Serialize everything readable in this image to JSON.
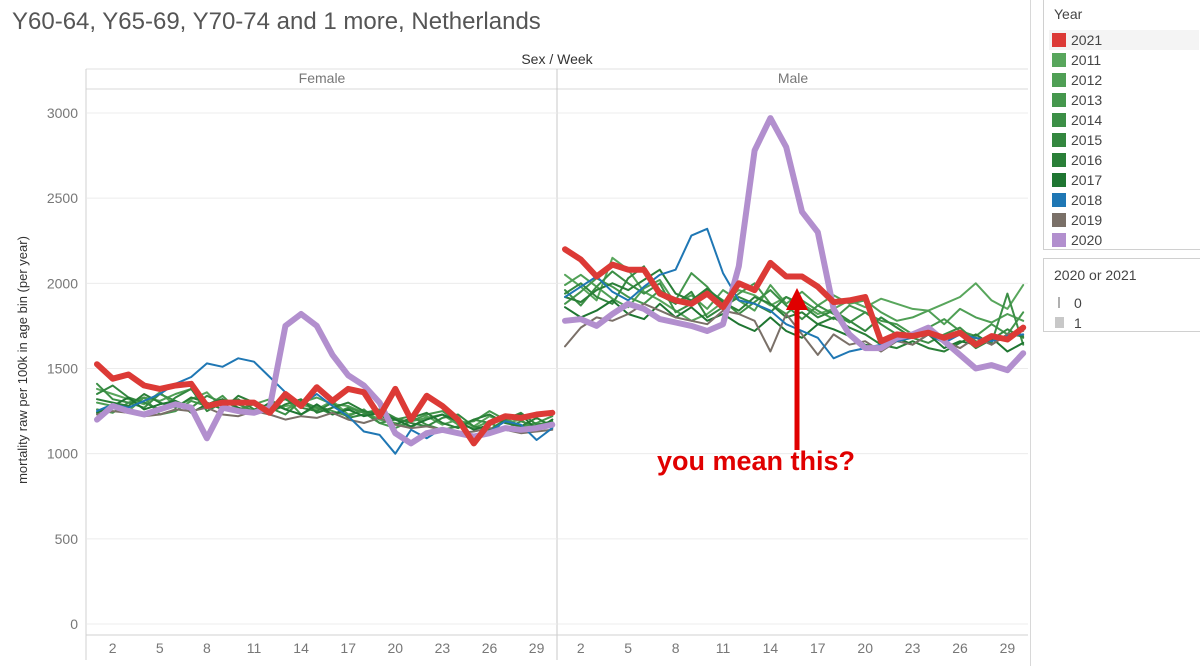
{
  "title": "Y60-64, Y65-69, Y70-74 and 1 more, Netherlands",
  "header_label": "Sex / Week",
  "annotation": "you mean this?",
  "legend": {
    "title": "Year",
    "items": [
      {
        "label": "2021",
        "color": "#dc3a36"
      },
      {
        "label": "2011",
        "color": "#58a65c"
      },
      {
        "label": "2012",
        "color": "#4f9f55"
      },
      {
        "label": "2013",
        "color": "#45974d"
      },
      {
        "label": "2014",
        "color": "#3c8f46"
      },
      {
        "label": "2015",
        "color": "#33873f"
      },
      {
        "label": "2016",
        "color": "#2a7f38"
      },
      {
        "label": "2017",
        "color": "#1f7632"
      },
      {
        "label": "2018",
        "color": "#1f77b4"
      },
      {
        "label": "2019",
        "color": "#7a7068"
      },
      {
        "label": "2020",
        "color": "#b28fce"
      }
    ]
  },
  "legend2": {
    "title": "2020 or 2021",
    "items": [
      {
        "label": "0"
      },
      {
        "label": "1"
      }
    ]
  },
  "chart_data": {
    "type": "line",
    "xlabel": "",
    "ylabel": "mortality raw per 100k in age bin (per year)",
    "ylim": [
      0,
      3000
    ],
    "yticks": [
      0,
      500,
      1000,
      1500,
      2000,
      2500,
      3000
    ],
    "xticks": [
      2,
      5,
      8,
      11,
      14,
      17,
      20,
      23,
      26,
      29
    ],
    "x": [
      1,
      2,
      3,
      4,
      5,
      6,
      7,
      8,
      9,
      10,
      11,
      12,
      13,
      14,
      15,
      16,
      17,
      18,
      19,
      20,
      21,
      22,
      23,
      24,
      25,
      26,
      27,
      28,
      29,
      30
    ],
    "panels": [
      {
        "name": "Female",
        "series": [
          {
            "name": "2021",
            "values": [
              1525,
              1440,
              1465,
              1400,
              1380,
              1400,
              1410,
              1280,
              1300,
              1300,
              1300,
              1240,
              1350,
              1280,
              1390,
              1310,
              1380,
              1360,
              1220,
              1380,
              1200,
              1340,
              1280,
              1200,
              1060,
              1180,
              1220,
              1210,
              1230,
              1240
            ]
          },
          {
            "name": "2011",
            "values": [
              1380,
              1350,
              1320,
              1290,
              1360,
              1280,
              1320,
              1360,
              1270,
              1240,
              1300,
              1250,
              1280,
              1290,
              1260,
              1310,
              1230,
              1250,
              1200,
              1180,
              1150,
              1220,
              1170,
              1200,
              1160,
              1220,
              1180,
              1200,
              1130,
              1200
            ]
          },
          {
            "name": "2012",
            "values": [
              1300,
              1280,
              1250,
              1330,
              1310,
              1350,
              1380,
              1290,
              1320,
              1260,
              1290,
              1320,
              1260,
              1300,
              1330,
              1290,
              1280,
              1240,
              1260,
              1200,
              1190,
              1210,
              1230,
              1170,
              1150,
              1190,
              1210,
              1160,
              1180,
              1150
            ]
          },
          {
            "name": "2013",
            "values": [
              1260,
              1240,
              1300,
              1330,
              1230,
              1250,
              1310,
              1280,
              1340,
              1250,
              1300,
              1270,
              1330,
              1230,
              1280,
              1250,
              1220,
              1260,
              1180,
              1150,
              1190,
              1230,
              1250,
              1180,
              1190,
              1250,
              1200,
              1150,
              1180,
              1220
            ]
          },
          {
            "name": "2014",
            "values": [
              1410,
              1320,
              1300,
              1270,
              1350,
              1310,
              1270,
              1340,
              1300,
              1290,
              1250,
              1270,
              1230,
              1310,
              1270,
              1230,
              1270,
              1240,
              1180,
              1200,
              1220,
              1170,
              1140,
              1160,
              1200,
              1180,
              1140,
              1190,
              1160,
              1180
            ]
          },
          {
            "name": "2015",
            "values": [
              1350,
              1400,
              1330,
              1300,
              1260,
              1330,
              1380,
              1250,
              1300,
              1320,
              1260,
              1290,
              1320,
              1270,
              1250,
              1300,
              1210,
              1230,
              1260,
              1210,
              1180,
              1160,
              1210,
              1230,
              1160,
              1140,
              1200,
              1240,
              1170,
              1190
            ]
          },
          {
            "name": "2016",
            "values": [
              1320,
              1300,
              1280,
              1350,
              1300,
              1270,
              1330,
              1300,
              1260,
              1340,
              1300,
              1240,
              1290,
              1320,
              1240,
              1270,
              1300,
              1250,
              1230,
              1170,
              1210,
              1240,
              1180,
              1150,
              1200,
              1230,
              1180,
              1160,
              1210,
              1160
            ]
          },
          {
            "name": "2017",
            "values": [
              1240,
              1280,
              1330,
              1260,
              1290,
              1310,
              1240,
              1290,
              1320,
              1270,
              1240,
              1300,
              1260,
              1230,
              1290,
              1230,
              1260,
              1220,
              1240,
              1200,
              1160,
              1200,
              1230,
              1190,
              1140,
              1170,
              1210,
              1230,
              1140,
              1200
            ]
          },
          {
            "name": "2018",
            "values": [
              1250,
              1290,
              1270,
              1310,
              1350,
              1410,
              1450,
              1530,
              1510,
              1560,
              1540,
              1450,
              1360,
              1290,
              1350,
              1280,
              1220,
              1130,
              1110,
              1000,
              1140,
              1090,
              1150,
              1120,
              1100,
              1130,
              1190,
              1170,
              1080,
              1150
            ]
          },
          {
            "name": "2019",
            "values": [
              1230,
              1250,
              1240,
              1220,
              1230,
              1260,
              1250,
              1270,
              1230,
              1220,
              1250,
              1230,
              1200,
              1220,
              1210,
              1240,
              1200,
              1180,
              1210,
              1170,
              1150,
              1160,
              1140,
              1120,
              1130,
              1150,
              1140,
              1120,
              1130,
              1140
            ]
          },
          {
            "name": "2020",
            "values": [
              1200,
              1280,
              1250,
              1230,
              1260,
              1290,
              1270,
              1090,
              1270,
              1250,
              1240,
              1270,
              1750,
              1820,
              1750,
              1580,
              1460,
              1400,
              1300,
              1120,
              1060,
              1120,
              1140,
              1120,
              1100,
              1120,
              1150,
              1140,
              1150,
              1170
            ]
          }
        ]
      },
      {
        "name": "Male",
        "series": [
          {
            "name": "2021",
            "values": [
              2200,
              2140,
              2040,
              2110,
              2080,
              2080,
              1940,
              1900,
              1880,
              1940,
              1860,
              2000,
              1960,
              2120,
              2040,
              2040,
              1980,
              1890,
              1900,
              1920,
              1660,
              1700,
              1690,
              1710,
              1680,
              1710,
              1640,
              1690,
              1670,
              1740
            ]
          },
          {
            "name": "2011",
            "values": [
              2050,
              1980,
              1900,
              2150,
              2080,
              1950,
              1900,
              1840,
              1780,
              1820,
              1890,
              1960,
              1930,
              1870,
              1920,
              1880,
              1820,
              1850,
              1900,
              1860,
              1910,
              1880,
              1850,
              1840,
              1880,
              1920,
              2000,
              1900,
              1850,
              1990
            ]
          },
          {
            "name": "2012",
            "values": [
              1990,
              2050,
              1980,
              1910,
              1860,
              1970,
              2020,
              1880,
              1930,
              1850,
              1960,
              1900,
              1840,
              1990,
              1880,
              1950,
              1870,
              1930,
              1880,
              1900,
              1830,
              1780,
              1800,
              1840,
              1760,
              1850,
              1800,
              1770,
              1820,
              1780
            ]
          },
          {
            "name": "2013",
            "values": [
              1880,
              1950,
              2030,
              1980,
              1920,
              1880,
              1960,
              1900,
              2060,
              1980,
              1860,
              1940,
              2000,
              1880,
              1820,
              1900,
              1840,
              1790,
              1870,
              1830,
              1780,
              1760,
              1700,
              1740,
              1790,
              1720,
              1690,
              1760,
              1700,
              1830
            ]
          },
          {
            "name": "2014",
            "values": [
              1960,
              1870,
              1980,
              2070,
              2000,
              1940,
              2000,
              1830,
              1880,
              1960,
              1900,
              1820,
              1890,
              1960,
              1870,
              1790,
              1870,
              1820,
              1770,
              1830,
              1760,
              1700,
              1680,
              1650,
              1700,
              1740,
              1660,
              1650,
              1940,
              1640
            ]
          },
          {
            "name": "2015",
            "values": [
              1940,
              2000,
              1920,
              1880,
              2030,
              2100,
              1930,
              1880,
              1950,
              1800,
              1860,
              1920,
              1880,
              1830,
              1920,
              1870,
              1800,
              1840,
              1780,
              1720,
              1800,
              1740,
              1680,
              1710,
              1680,
              1700,
              1620,
              1670,
              1730,
              1680
            ]
          },
          {
            "name": "2016",
            "values": [
              1920,
              1890,
              1960,
              2000,
              1960,
              2020,
              2080,
              1940,
              1900,
              1970,
              1890,
              1840,
              1920,
              1880,
              1800,
              1830,
              1760,
              1800,
              1740,
              1700,
              1640,
              1620,
              1660,
              1620,
              1600,
              1650,
              1700,
              1640,
              1700,
              1690
            ]
          },
          {
            "name": "2017",
            "values": [
              1860,
              1800,
              1840,
              1900,
              1820,
              1790,
              1880,
              1800,
              1860,
              1780,
              1820,
              1760,
              1720,
              1800,
              1720,
              1680,
              1760,
              1730,
              1690,
              1640,
              1620,
              1680,
              1640,
              1700,
              1620,
              1660,
              1640,
              1680,
              1600,
              1650
            ]
          },
          {
            "name": "2018",
            "values": [
              1920,
              1980,
              2040,
              1950,
              1900,
              1980,
              2050,
              2080,
              2280,
              2320,
              2060,
              1900,
              1880,
              1840,
              1760,
              1720,
              1680,
              1560,
              1600,
              1620,
              1640,
              1660,
              1680,
              1700,
              1650,
              1700,
              1680,
              1660,
              1690,
              1700
            ]
          },
          {
            "name": "2019",
            "values": [
              1630,
              1740,
              1800,
              1780,
              1820,
              1880,
              1840,
              1800,
              1780,
              1760,
              1840,
              1820,
              1780,
              1600,
              1820,
              1700,
              1580,
              1700,
              1640,
              1660,
              1600,
              1660,
              1640,
              1700,
              1660,
              1620,
              1680,
              1640,
              1700,
              1720
            ]
          },
          {
            "name": "2020",
            "values": [
              1780,
              1790,
              1750,
              1820,
              1880,
              1850,
              1790,
              1770,
              1750,
              1720,
              1760,
              2100,
              2780,
              2970,
              2800,
              2420,
              2300,
              1850,
              1700,
              1620,
              1620,
              1680,
              1700,
              1740,
              1660,
              1580,
              1500,
              1520,
              1490,
              1590
            ]
          }
        ]
      }
    ]
  }
}
